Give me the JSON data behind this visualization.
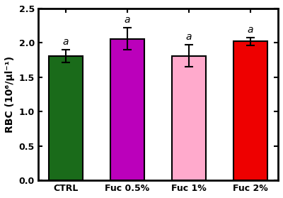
{
  "categories": [
    "CTRL",
    "Fuc 0.5%",
    "Fuc 1%",
    "Fuc 2%"
  ],
  "values": [
    1.81,
    2.06,
    1.81,
    2.02
  ],
  "errors": [
    0.09,
    0.16,
    0.16,
    0.06
  ],
  "bar_colors": [
    "#1a6b1a",
    "#bb00bb",
    "#ffaacc",
    "#ee0000"
  ],
  "bar_edgecolors": [
    "#000000",
    "#000000",
    "#000000",
    "#000000"
  ],
  "ylabel": "RBC (10⁶/µl⁻¹)",
  "ylim": [
    0,
    2.5
  ],
  "yticks": [
    0.0,
    0.5,
    1.0,
    1.5,
    2.0,
    2.5
  ],
  "significance_labels": [
    "a",
    "a",
    "a",
    "a"
  ],
  "bar_width": 0.55,
  "figsize": [
    4.0,
    2.79
  ],
  "dpi": 100,
  "background_color": "#ffffff",
  "capsize": 4,
  "error_color": "black",
  "error_linewidth": 1.5,
  "label_fontsize": 10,
  "tick_fontsize": 9,
  "sig_fontsize": 10,
  "spine_linewidth": 2.0
}
